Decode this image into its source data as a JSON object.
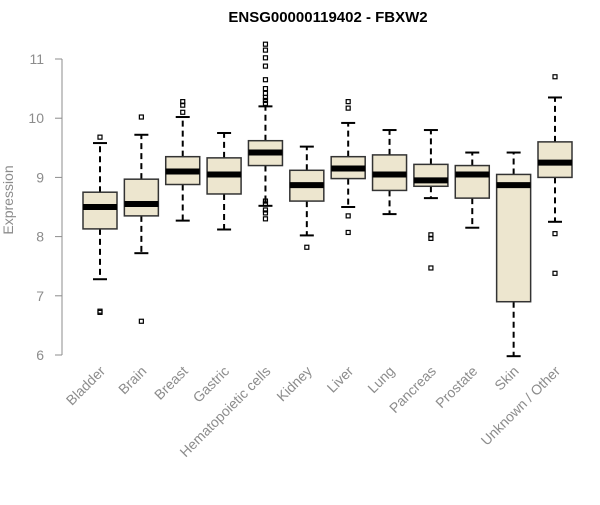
{
  "chart_data": {
    "type": "boxplot",
    "title": "ENSG00000119402 - FBXW2",
    "xlabel": "",
    "ylabel": "Expression",
    "ylim": [
      6,
      11
    ],
    "yticks": [
      6,
      7,
      8,
      9,
      10,
      11
    ],
    "grid": false,
    "colors": {
      "box_fill": "#ede6cf",
      "box_stroke": "#333333",
      "median": "#000000",
      "axis": "#8c8c8c"
    },
    "categories": [
      "Bladder",
      "Brain",
      "Breast",
      "Gastric",
      "Hematopoietic cells",
      "Kidney",
      "Liver",
      "Lung",
      "Pancreas",
      "Prostate",
      "Skin",
      "Unknown / Other"
    ],
    "boxes": [
      {
        "name": "Bladder",
        "whisker_low": 7.28,
        "q1": 8.13,
        "median": 8.5,
        "q3": 8.75,
        "whisker_high": 9.58,
        "outliers": [
          9.68,
          6.72,
          6.74
        ]
      },
      {
        "name": "Brain",
        "whisker_low": 7.72,
        "q1": 8.35,
        "median": 8.55,
        "q3": 8.97,
        "whisker_high": 9.72,
        "outliers": [
          10.02,
          6.57
        ]
      },
      {
        "name": "Breast",
        "whisker_low": 8.27,
        "q1": 8.88,
        "median": 9.1,
        "q3": 9.35,
        "whisker_high": 10.02,
        "outliers": [
          10.22,
          10.28,
          10.1
        ]
      },
      {
        "name": "Gastric",
        "whisker_low": 8.12,
        "q1": 8.72,
        "median": 9.05,
        "q3": 9.33,
        "whisker_high": 9.75,
        "outliers": []
      },
      {
        "name": "Hematopoietic cells",
        "whisker_low": 8.52,
        "q1": 9.2,
        "median": 9.42,
        "q3": 9.62,
        "whisker_high": 10.2,
        "outliers": [
          11.25,
          11.15,
          11.02,
          10.88,
          10.65,
          10.5,
          10.42,
          10.35,
          10.3,
          10.25,
          8.6,
          8.55,
          8.45,
          8.4,
          8.3
        ]
      },
      {
        "name": "Kidney",
        "whisker_low": 8.02,
        "q1": 8.6,
        "median": 8.87,
        "q3": 9.12,
        "whisker_high": 9.52,
        "outliers": [
          7.82
        ]
      },
      {
        "name": "Liver",
        "whisker_low": 8.5,
        "q1": 8.98,
        "median": 9.15,
        "q3": 9.35,
        "whisker_high": 9.92,
        "outliers": [
          10.28,
          10.17,
          8.35,
          8.07
        ]
      },
      {
        "name": "Lung",
        "whisker_low": 8.38,
        "q1": 8.78,
        "median": 9.05,
        "q3": 9.38,
        "whisker_high": 9.8,
        "outliers": []
      },
      {
        "name": "Pancreas",
        "whisker_low": 8.65,
        "q1": 8.85,
        "median": 8.95,
        "q3": 9.22,
        "whisker_high": 9.8,
        "outliers": [
          8.03,
          7.97,
          7.47
        ]
      },
      {
        "name": "Prostate",
        "whisker_low": 8.15,
        "q1": 8.65,
        "median": 9.05,
        "q3": 9.2,
        "whisker_high": 9.42,
        "outliers": []
      },
      {
        "name": "Skin",
        "whisker_low": 5.98,
        "q1": 6.9,
        "median": 8.87,
        "q3": 9.05,
        "whisker_high": 9.42,
        "outliers": []
      },
      {
        "name": "Unknown / Other",
        "whisker_low": 8.25,
        "q1": 9.0,
        "median": 9.25,
        "q3": 9.6,
        "whisker_high": 10.35,
        "outliers": [
          10.7,
          8.05,
          7.38
        ]
      }
    ]
  }
}
